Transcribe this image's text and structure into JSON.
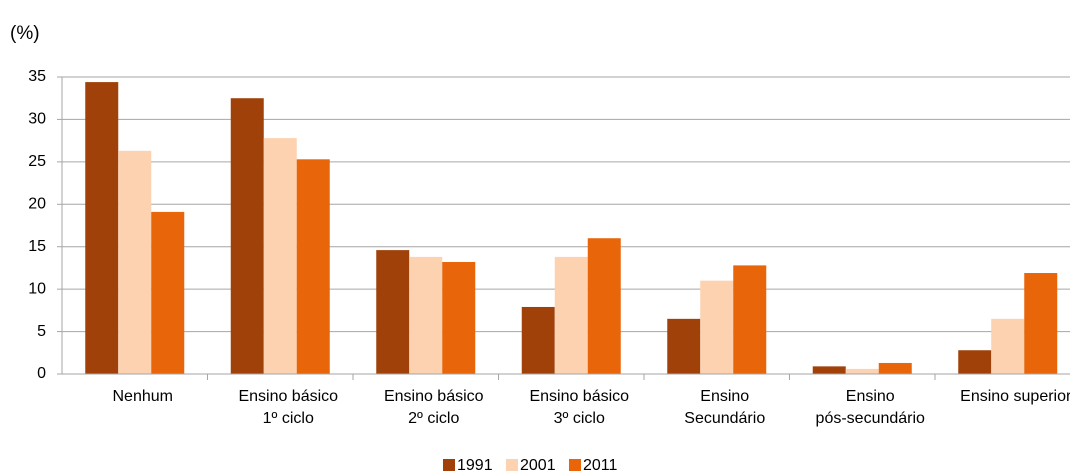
{
  "chart_data": {
    "type": "bar",
    "y_axis_label": "(%)",
    "categories": [
      [
        "Nenhum"
      ],
      [
        "Ensino básico",
        "1º ciclo"
      ],
      [
        "Ensino básico",
        "2º ciclo"
      ],
      [
        "Ensino básico",
        "3º ciclo"
      ],
      [
        "Ensino",
        "Secundário"
      ],
      [
        "Ensino",
        "pós-secundário"
      ],
      [
        "Ensino superior"
      ]
    ],
    "series": [
      {
        "name": "1991",
        "color": "#a0410a",
        "values": [
          34.4,
          32.5,
          14.6,
          7.9,
          6.5,
          0.9,
          2.8
        ]
      },
      {
        "name": "2001",
        "color": "#fcd2b0",
        "values": [
          26.3,
          27.8,
          13.8,
          13.8,
          11.0,
          0.6,
          6.5
        ]
      },
      {
        "name": "2011",
        "color": "#e8650a",
        "values": [
          19.1,
          25.3,
          13.2,
          16.0,
          12.8,
          1.3,
          11.9
        ]
      }
    ],
    "ylim": [
      0,
      35
    ],
    "yticks": [
      0,
      5,
      10,
      15,
      20,
      25,
      30,
      35
    ],
    "grid": true,
    "legend": "bottom"
  }
}
